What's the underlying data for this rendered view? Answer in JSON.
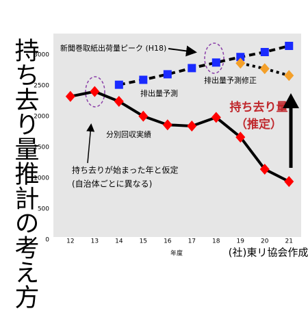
{
  "chart_data": {
    "type": "line",
    "title": "持ち去り量推計の考え方",
    "x_label": "年度",
    "source": "(社)東リ協会作成",
    "x": [
      12,
      13,
      14,
      15,
      16,
      17,
      18,
      19,
      20,
      21
    ],
    "xlim": [
      11.3,
      21.5
    ],
    "xticks": [
      12,
      13,
      14,
      15,
      16,
      17,
      18,
      19,
      20,
      21
    ],
    "ylim": [
      0,
      3300
    ],
    "yticks": [
      0,
      500,
      1000,
      1500,
      2000,
      2500,
      3000
    ],
    "grid": false,
    "series": [
      {
        "name": "分別回収実績",
        "color": "#ff0000",
        "marker": "diamond",
        "line": "solid",
        "values": [
          2280,
          2360,
          2200,
          1960,
          1820,
          1800,
          1940,
          1620,
          1100,
          900
        ]
      },
      {
        "name": "排出量予測",
        "color": "#1a2bff",
        "marker": "square",
        "line": "dashed",
        "values": [
          null,
          null,
          2470,
          2550,
          2640,
          2740,
          2830,
          2920,
          3000,
          3100
        ]
      },
      {
        "name": "排出量予測修正",
        "color": "#f4a02a",
        "marker": "diamond",
        "line": "dotted",
        "values": [
          null,
          null,
          null,
          null,
          null,
          null,
          null,
          2820,
          2730,
          2620
        ]
      }
    ],
    "annotations": {
      "peak": "新聞巻取紙出荷量ピーク (H18)",
      "start": [
        "持ち去りが始まった年と仮定",
        "(自治体ごとに異なる)"
      ],
      "estimate": [
        "持ち去り量",
        "（推定）"
      ]
    }
  }
}
